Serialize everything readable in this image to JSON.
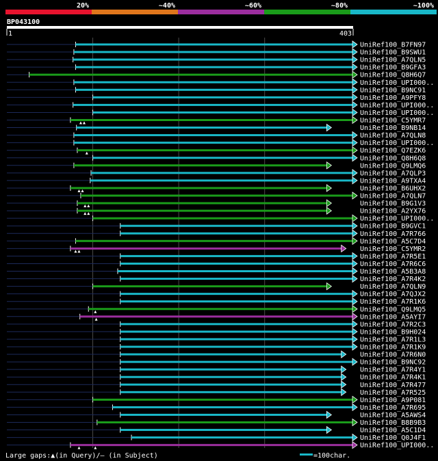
{
  "chart_data": {
    "type": "alignment-overview",
    "query_id": "BP043100",
    "query_start": "1",
    "query_end": "403",
    "query_length": 403,
    "identity_legend": [
      {
        "label": "20%",
        "color": "#e8132e"
      },
      {
        "label": "~40%",
        "color": "#e0761c"
      },
      {
        "label": "~60%",
        "color": "#9c2e9e"
      },
      {
        "label": "~80%",
        "color": "#1a9c1a"
      },
      {
        "label": "~100%",
        "color": "#19b8c8"
      }
    ],
    "footer_text": "Large gaps:▲(in Query)/– (in Subject)",
    "scale_label": "=100char.",
    "hits": [
      {
        "name": "UniRef100_B7FN97",
        "start": 80,
        "end": 403,
        "color": "#19b8c8",
        "arrow": true,
        "gaps": []
      },
      {
        "name": "UniRef100_B9SWU1",
        "start": 78,
        "end": 403,
        "color": "#19b8c8",
        "arrow": true,
        "gaps": []
      },
      {
        "name": "UniRef100_A7QLN5",
        "start": 77,
        "end": 403,
        "color": "#19b8c8",
        "arrow": true,
        "gaps": []
      },
      {
        "name": "UniRef100_B9GFA3",
        "start": 80,
        "end": 403,
        "color": "#19b8c8",
        "arrow": true,
        "gaps": []
      },
      {
        "name": "UniRef100_Q8H6Q7",
        "start": 26,
        "end": 403,
        "color": "#1a9c1a",
        "arrow": true,
        "gaps": []
      },
      {
        "name": "UniRef100_UPI000..",
        "start": 78,
        "end": 403,
        "color": "#19b8c8",
        "arrow": true,
        "gaps": []
      },
      {
        "name": "UniRef100_B9NC91",
        "start": 80,
        "end": 403,
        "color": "#19b8c8",
        "arrow": true,
        "gaps": []
      },
      {
        "name": "UniRef100_A9PFY8",
        "start": 100,
        "end": 403,
        "color": "#19b8c8",
        "arrow": true,
        "gaps": []
      },
      {
        "name": "UniRef100_UPI000..",
        "start": 77,
        "end": 403,
        "color": "#19b8c8",
        "arrow": true,
        "gaps": []
      },
      {
        "name": "UniRef100_UPI000..",
        "start": 100,
        "end": 403,
        "color": "#19b8c8",
        "arrow": true,
        "gaps": []
      },
      {
        "name": "UniRef100_C5YMR7",
        "start": 74,
        "end": 403,
        "color": "#1a9c1a",
        "arrow": true,
        "gaps": [
          86,
          90
        ]
      },
      {
        "name": "UniRef100_B9NB14",
        "start": 81,
        "end": 373,
        "color": "#19b8c8",
        "arrow": true,
        "gaps": []
      },
      {
        "name": "UniRef100_A7QLN8",
        "start": 78,
        "end": 403,
        "color": "#19b8c8",
        "arrow": true,
        "gaps": []
      },
      {
        "name": "UniRef100_UPI000..",
        "start": 78,
        "end": 403,
        "color": "#19b8c8",
        "arrow": true,
        "gaps": []
      },
      {
        "name": "UniRef100_Q7EZK6",
        "start": 82,
        "end": 403,
        "color": "#1a9c1a",
        "arrow": true,
        "gaps": [
          93
        ]
      },
      {
        "name": "UniRef100_Q8H6Q8",
        "start": 100,
        "end": 403,
        "color": "#19b8c8",
        "arrow": true,
        "gaps": []
      },
      {
        "name": "UniRef100_Q9LMQ6",
        "start": 78,
        "end": 373,
        "color": "#1a9c1a",
        "arrow": true,
        "gaps": []
      },
      {
        "name": "UniRef100_A7QLP3",
        "start": 98,
        "end": 403,
        "color": "#19b8c8",
        "arrow": true,
        "gaps": []
      },
      {
        "name": "UniRef100_A9TXA4",
        "start": 97,
        "end": 403,
        "color": "#19b8c8",
        "arrow": true,
        "gaps": []
      },
      {
        "name": "UniRef100_B6UHX2",
        "start": 74,
        "end": 373,
        "color": "#1a9c1a",
        "arrow": true,
        "gaps": [
          84,
          88
        ]
      },
      {
        "name": "UniRef100_A7QLN7",
        "start": 86,
        "end": 403,
        "color": "#1a9c1a",
        "arrow": true,
        "gaps": []
      },
      {
        "name": "UniRef100_B9G1V3",
        "start": 82,
        "end": 373,
        "color": "#1a9c1a",
        "arrow": true,
        "gaps": [
          91,
          95
        ]
      },
      {
        "name": "UniRef100_A2YX76",
        "start": 82,
        "end": 373,
        "color": "#1a9c1a",
        "arrow": true,
        "gaps": [
          91,
          95
        ]
      },
      {
        "name": "UniRef100_UPI000..",
        "start": 100,
        "end": 403,
        "color": "#1a9c1a",
        "arrow": true,
        "gaps": []
      },
      {
        "name": "UniRef100_B9GVC1",
        "start": 132,
        "end": 403,
        "color": "#19b8c8",
        "arrow": true,
        "gaps": []
      },
      {
        "name": "UniRef100_A7R766",
        "start": 132,
        "end": 403,
        "color": "#19b8c8",
        "arrow": true,
        "gaps": []
      },
      {
        "name": "UniRef100_A5C7D4",
        "start": 80,
        "end": 403,
        "color": "#1a9c1a",
        "arrow": true,
        "gaps": []
      },
      {
        "name": "UniRef100_C5YMR2",
        "start": 74,
        "end": 390,
        "color": "#9c2e9e",
        "arrow": true,
        "gaps": [
          80,
          84
        ]
      },
      {
        "name": "UniRef100_A7R5E1",
        "start": 132,
        "end": 403,
        "color": "#19b8c8",
        "arrow": true,
        "gaps": []
      },
      {
        "name": "UniRef100_A7R6C6",
        "start": 132,
        "end": 403,
        "color": "#19b8c8",
        "arrow": true,
        "gaps": []
      },
      {
        "name": "UniRef100_A5B3A8",
        "start": 129,
        "end": 403,
        "color": "#19b8c8",
        "arrow": true,
        "gaps": []
      },
      {
        "name": "UniRef100_A7R4K2",
        "start": 132,
        "end": 403,
        "color": "#19b8c8",
        "arrow": true,
        "gaps": []
      },
      {
        "name": "UniRef100_A7QLN9",
        "start": 100,
        "end": 373,
        "color": "#1a9c1a",
        "arrow": true,
        "gaps": []
      },
      {
        "name": "UniRef100_A7QJX2",
        "start": 132,
        "end": 403,
        "color": "#19b8c8",
        "arrow": true,
        "gaps": []
      },
      {
        "name": "UniRef100_A7R1K6",
        "start": 132,
        "end": 403,
        "color": "#19b8c8",
        "arrow": true,
        "gaps": []
      },
      {
        "name": "UniRef100_Q9LMQ5",
        "start": 95,
        "end": 403,
        "color": "#1a9c1a",
        "arrow": true,
        "gaps": [
          103
        ]
      },
      {
        "name": "UniRef100_A5AYI7",
        "start": 85,
        "end": 403,
        "color": "#9c2e9e",
        "arrow": true,
        "gaps": [
          104
        ]
      },
      {
        "name": "UniRef100_A7R2C3",
        "start": 132,
        "end": 403,
        "color": "#19b8c8",
        "arrow": true,
        "gaps": []
      },
      {
        "name": "UniRef100_B9H024",
        "start": 132,
        "end": 403,
        "color": "#19b8c8",
        "arrow": true,
        "gaps": []
      },
      {
        "name": "UniRef100_A7R1L3",
        "start": 132,
        "end": 403,
        "color": "#19b8c8",
        "arrow": true,
        "gaps": []
      },
      {
        "name": "UniRef100_A7R1K9",
        "start": 132,
        "end": 403,
        "color": "#19b8c8",
        "arrow": true,
        "gaps": []
      },
      {
        "name": "UniRef100_A7R6N0",
        "start": 132,
        "end": 390,
        "color": "#19b8c8",
        "arrow": true,
        "gaps": []
      },
      {
        "name": "UniRef100_B9NC92",
        "start": 132,
        "end": 403,
        "color": "#19b8c8",
        "arrow": true,
        "gaps": []
      },
      {
        "name": "UniRef100_A7R4Y1",
        "start": 132,
        "end": 390,
        "color": "#19b8c8",
        "arrow": true,
        "gaps": []
      },
      {
        "name": "UniRef100_A7R4K1",
        "start": 132,
        "end": 390,
        "color": "#19b8c8",
        "arrow": true,
        "gaps": []
      },
      {
        "name": "UniRef100_A7R477",
        "start": 132,
        "end": 390,
        "color": "#19b8c8",
        "arrow": true,
        "gaps": []
      },
      {
        "name": "UniRef100_A7R525",
        "start": 132,
        "end": 390,
        "color": "#19b8c8",
        "arrow": true,
        "gaps": []
      },
      {
        "name": "UniRef100_A9P081",
        "start": 100,
        "end": 403,
        "color": "#1a9c1a",
        "arrow": true,
        "gaps": []
      },
      {
        "name": "UniRef100_A7R695",
        "start": 123,
        "end": 403,
        "color": "#19b8c8",
        "arrow": true,
        "gaps": []
      },
      {
        "name": "UniRef100_A5AWS4",
        "start": 132,
        "end": 373,
        "color": "#19b8c8",
        "arrow": true,
        "gaps": []
      },
      {
        "name": "UniRef100_B8B9B3",
        "start": 105,
        "end": 403,
        "color": "#1a9c1a",
        "arrow": true,
        "gaps": []
      },
      {
        "name": "UniRef100_A5C1D4",
        "start": 132,
        "end": 373,
        "color": "#19b8c8",
        "arrow": true,
        "gaps": []
      },
      {
        "name": "UniRef100_Q0J4F1",
        "start": 145,
        "end": 403,
        "color": "#19b8c8",
        "arrow": true,
        "gaps": []
      },
      {
        "name": "UniRef100_UPI000..",
        "start": 74,
        "end": 403,
        "color": "#9c2e9e",
        "arrow": true,
        "gaps": [
          84,
          103
        ]
      }
    ]
  }
}
